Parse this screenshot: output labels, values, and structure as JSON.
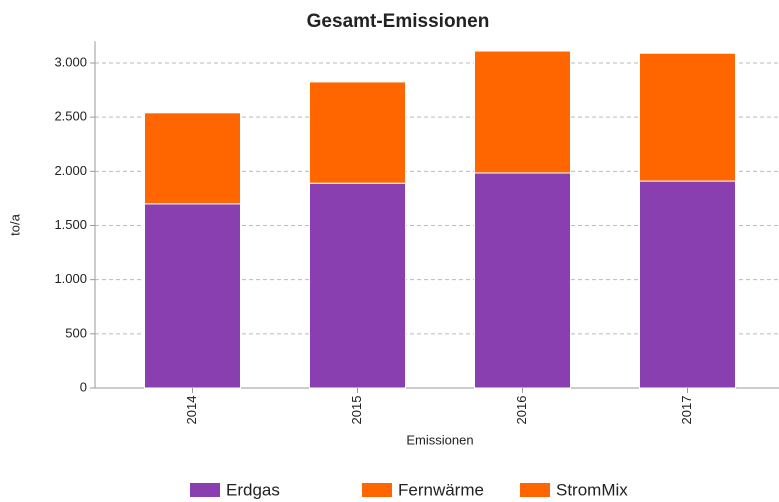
{
  "chart_data": {
    "type": "stacked_bar",
    "title": "Gesamt-Emissionen",
    "x_label": "Emissionen",
    "y_label": "to/a",
    "categories": [
      "2014",
      "2015",
      "2016",
      "2017"
    ],
    "series": [
      {
        "name": "Erdgas",
        "color": "#8a3fb0",
        "values": [
          1700,
          1890,
          1985,
          1910
        ]
      },
      {
        "name": "Fernwärme",
        "color": "#ff6600",
        "values": [
          840,
          935,
          1125,
          1180
        ]
      },
      {
        "name": "StromMix",
        "color": "#ff6600",
        "values": [
          0,
          0,
          0,
          0
        ]
      }
    ],
    "ylim": [
      0,
      3200
    ],
    "yticks": [
      0,
      {
        "value": 500,
        "label": "500"
      },
      {
        "value": 1000,
        "label": "1.000"
      },
      {
        "value": 1500,
        "label": "1.500"
      },
      {
        "value": 2000,
        "label": "2.000"
      },
      {
        "value": 2500,
        "label": "2.500"
      },
      {
        "value": 3000,
        "label": "3.000"
      }
    ],
    "grid": true,
    "legend": "bottom"
  }
}
